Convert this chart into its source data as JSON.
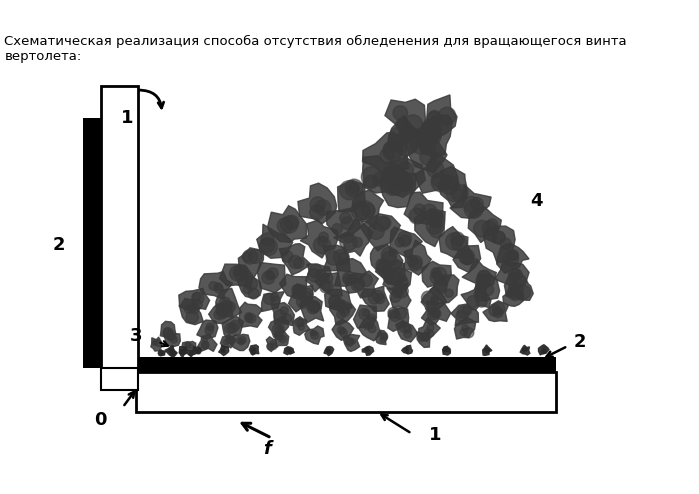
{
  "title_line1": "Схематическая реализация способа отсутствия обледенения для вращающегося винта",
  "title_line2": "вертолета:",
  "bg_color": "#ffffff",
  "label_0": "0",
  "label_1a": "1",
  "label_1b": "1",
  "label_2a": "2",
  "label_2b": "2",
  "label_3": "3",
  "label_4": "4",
  "label_f": "f"
}
